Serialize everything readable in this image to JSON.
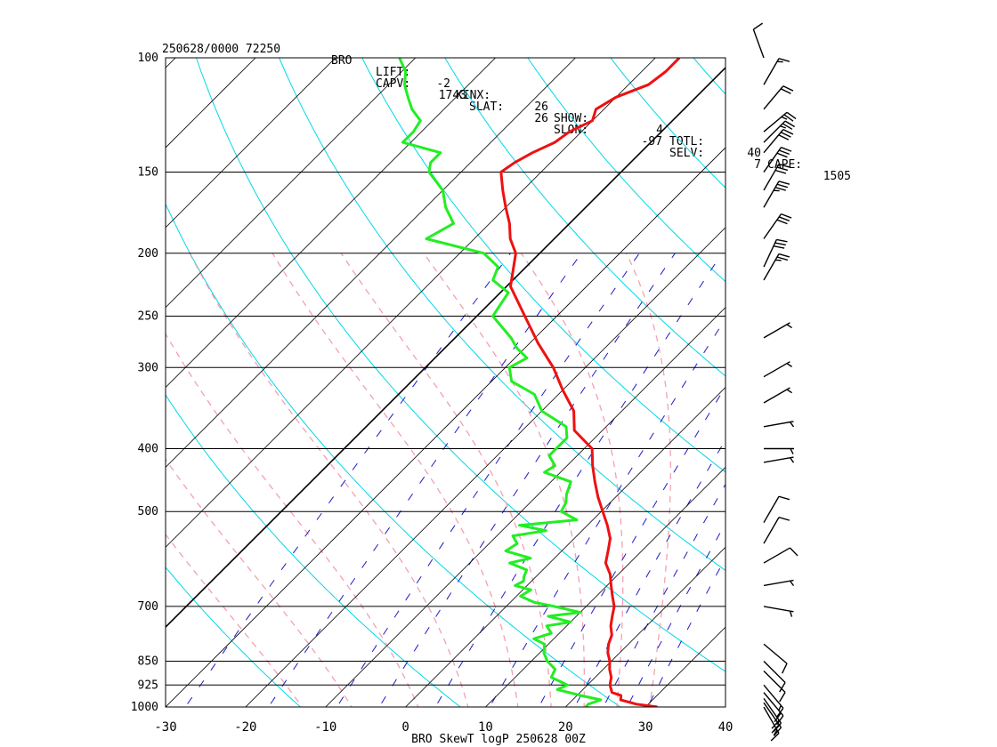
{
  "header": {
    "date_station": "250628/0000 72250",
    "station_id": "BRO",
    "indices": [
      {
        "label": "LIFT:",
        "value": "-2"
      },
      {
        "label": "KINX:",
        "value": "26"
      },
      {
        "label": "SHOW:",
        "value": "4"
      },
      {
        "label": "TOTL:",
        "value": "40"
      },
      {
        "label": "CAPE:",
        "value": "1505"
      },
      {
        "label": "CAPV:",
        "value": "1743"
      },
      {
        "label": "SLAT:",
        "value": "26"
      },
      {
        "label": "SLON:",
        "value": "-97"
      },
      {
        "label": "SELV:",
        "value": "7"
      }
    ]
  },
  "chart_data": {
    "type": "line",
    "title": "",
    "xlabel": "BRO SkewT logP 250628 00Z",
    "ylabel": "",
    "x_ticks": [
      -30,
      -20,
      -10,
      0,
      10,
      20,
      30,
      40
    ],
    "x_tick_labels": [
      "-30",
      "-20",
      "-10",
      "0",
      "10",
      "20",
      "30",
      "40"
    ],
    "xlim": [
      -30,
      40
    ],
    "y_ticks": [
      100,
      150,
      200,
      250,
      300,
      400,
      500,
      700,
      850,
      925,
      1000
    ],
    "y_tick_labels": [
      "100",
      "150",
      "200",
      "250",
      "300",
      "400",
      "500",
      "700",
      "850",
      "925",
      "1000"
    ],
    "ylim": [
      1000,
      100
    ],
    "y_scale": "log",
    "skew": true,
    "colors": {
      "temperature": "#ee1111",
      "dewpoint": "#22ee22",
      "isotherm": "#000000",
      "dry_adiabat": "#00d8e8",
      "moist_adiabat": "#f4a0b0",
      "mixing_ratio": "#1c1cc8",
      "isobar": "#000000",
      "wind_barb": "#000000"
    },
    "series": [
      {
        "key": "temperature",
        "pressure": [
          1000,
          990,
          975,
          960,
          950,
          925,
          900,
          875,
          850,
          825,
          800,
          775,
          750,
          725,
          700,
          675,
          650,
          625,
          600,
          575,
          550,
          525,
          500,
          475,
          450,
          425,
          400,
          375,
          350,
          325,
          300,
          275,
          250,
          225,
          200,
          190,
          180,
          170,
          160,
          150,
          145,
          140,
          135,
          130,
          125,
          120,
          115,
          110,
          105,
          100
        ],
        "values": [
          31.5,
          28.5,
          26.0,
          25.5,
          24.0,
          22.8,
          22.0,
          20.8,
          19.8,
          18.5,
          17.5,
          16.8,
          15.5,
          14.5,
          13.5,
          12.0,
          10.5,
          9.0,
          7.0,
          5.8,
          4.5,
          2.5,
          0.2,
          -2.2,
          -4.5,
          -6.8,
          -9.0,
          -13.5,
          -16.0,
          -20.0,
          -24.0,
          -29.0,
          -34.0,
          -39.5,
          -43.0,
          -45.5,
          -47.5,
          -50.0,
          -52.5,
          -55.0,
          -54.5,
          -53.5,
          -52.0,
          -51.5,
          -50.0,
          -51.0,
          -50.0,
          -47.5,
          -47.0,
          -47.0
        ]
      },
      {
        "key": "dewpoint",
        "pressure": [
          1000,
          990,
          975,
          960,
          940,
          925,
          900,
          875,
          850,
          825,
          800,
          785,
          770,
          750,
          740,
          725,
          715,
          700,
          690,
          675,
          660,
          650,
          640,
          630,
          615,
          600,
          590,
          575,
          560,
          545,
          535,
          525,
          515,
          500,
          485,
          470,
          450,
          435,
          425,
          410,
          400,
          385,
          370,
          350,
          330,
          315,
          300,
          290,
          280,
          270,
          250,
          240,
          230,
          220,
          210,
          200,
          190,
          180,
          170,
          160,
          150,
          145,
          140,
          135,
          130,
          125,
          120,
          115,
          110,
          105,
          100
        ],
        "values": [
          22.5,
          22.5,
          23.5,
          20.5,
          16.8,
          17.5,
          14.5,
          14.0,
          12.0,
          10.5,
          9.5,
          7.5,
          9.0,
          7.5,
          10.0,
          6.5,
          10.0,
          6.0,
          3.0,
          0.5,
          1.0,
          -1.5,
          -1.0,
          -1.5,
          -2.0,
          -5.0,
          -3.0,
          -7.0,
          -6.5,
          -8.0,
          -4.5,
          -8.5,
          -2.0,
          -5.0,
          -5.5,
          -6.5,
          -7.5,
          -12.0,
          -11.5,
          -13.5,
          -13.5,
          -13.5,
          -15.0,
          -20.0,
          -23.0,
          -27.5,
          -29.5,
          -28.5,
          -31.0,
          -33.0,
          -38.0,
          -38.5,
          -39.0,
          -42.5,
          -43.5,
          -47.0,
          -56.0,
          -54.5,
          -57.5,
          -60.0,
          -64.0,
          -65.0,
          -65.0,
          -71.0,
          -71.0,
          -71.5,
          -74.0,
          -76.0,
          -78.0,
          -79.5,
          -82.0
        ]
      }
    ],
    "wind_barbs": [
      {
        "p": 1000,
        "dir": 150,
        "kt": 15
      },
      {
        "p": 985,
        "dir": 145,
        "kt": 20
      },
      {
        "p": 970,
        "dir": 145,
        "kt": 20
      },
      {
        "p": 950,
        "dir": 140,
        "kt": 20
      },
      {
        "p": 925,
        "dir": 140,
        "kt": 15
      },
      {
        "p": 880,
        "dir": 135,
        "kt": 10
      },
      {
        "p": 850,
        "dir": 135,
        "kt": 10
      },
      {
        "p": 800,
        "dir": 130,
        "kt": 10
      },
      {
        "p": 700,
        "dir": 100,
        "kt": 5
      },
      {
        "p": 650,
        "dir": 80,
        "kt": 5
      },
      {
        "p": 600,
        "dir": 60,
        "kt": 10
      },
      {
        "p": 560,
        "dir": 30,
        "kt": 10
      },
      {
        "p": 520,
        "dir": 30,
        "kt": 10
      },
      {
        "p": 420,
        "dir": 80,
        "kt": 5
      },
      {
        "p": 400,
        "dir": 90,
        "kt": 5
      },
      {
        "p": 370,
        "dir": 80,
        "kt": 5
      },
      {
        "p": 340,
        "dir": 60,
        "kt": 5
      },
      {
        "p": 310,
        "dir": 60,
        "kt": 5
      },
      {
        "p": 270,
        "dir": 60,
        "kt": 5
      },
      {
        "p": 220,
        "dir": 30,
        "kt": 25
      },
      {
        "p": 210,
        "dir": 25,
        "kt": 30
      },
      {
        "p": 190,
        "dir": 35,
        "kt": 30
      },
      {
        "p": 170,
        "dir": 30,
        "kt": 35
      },
      {
        "p": 160,
        "dir": 30,
        "kt": 30
      },
      {
        "p": 150,
        "dir": 35,
        "kt": 30
      },
      {
        "p": 140,
        "dir": 40,
        "kt": 30
      },
      {
        "p": 135,
        "dir": 45,
        "kt": 25
      },
      {
        "p": 130,
        "dir": 50,
        "kt": 25
      },
      {
        "p": 120,
        "dir": 40,
        "kt": 20
      },
      {
        "p": 110,
        "dir": 30,
        "kt": 15
      },
      {
        "p": 100,
        "dir": 340,
        "kt": 10
      }
    ]
  }
}
